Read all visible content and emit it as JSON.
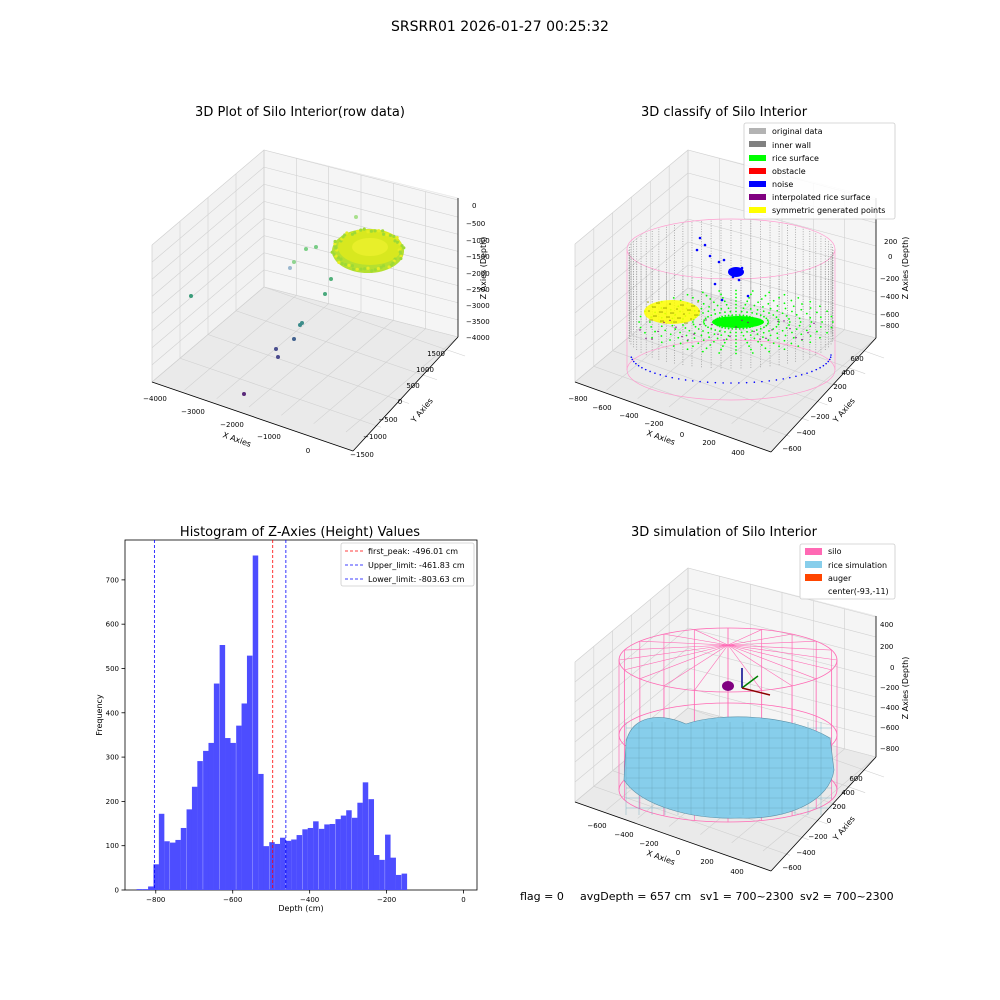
{
  "figure": {
    "suptitle": "SRSRR01 2026-01-27 00:25:32",
    "footer": {
      "flag": "flag = 0",
      "avg_depth": "avgDepth = 657 cm",
      "sv1": "sv1 = 700~2300",
      "sv2": "sv2 = 700~2300"
    }
  },
  "colors": {
    "original_data": "#b3b3b3",
    "inner_wall": "#808080",
    "rice_surface": "#00ff00",
    "obstacle": "#ff0000",
    "noise": "#0000ff",
    "interpolated_rice_surface": "#800080",
    "symmetric_generated_points": "#ffff00",
    "silo": "#ff69b4",
    "rice_simulation": "#87ceeb",
    "auger": "#ff4500",
    "hist_bar": "#4d4dff",
    "peak_line": "#ff0000",
    "limit_line": "#0000ff"
  },
  "chart_data": [
    {
      "type": "scatter3d",
      "title": "3D Plot of Silo Interior(row data)",
      "xlabel": "X Axies",
      "ylabel": "Y Axies",
      "zlabel": "Z Axies (Depth)",
      "xticks": [
        "−4000",
        "−3000",
        "−2000",
        "−1000",
        "0"
      ],
      "yticks": [
        "−1500",
        "−1000",
        "−500",
        "0",
        "500",
        "1000",
        "1500"
      ],
      "zticks": [
        "0",
        "−500",
        "−1000",
        "−1500",
        "−2000",
        "−2500",
        "−3000",
        "−3500",
        "−4000"
      ],
      "grid": true
    },
    {
      "type": "scatter3d",
      "title": "3D classify of Silo Interior",
      "xlabel": "X Axies",
      "ylabel": "Y Axies",
      "zlabel": "Z Axies (Depth)",
      "xticks": [
        "−800",
        "−600",
        "−400",
        "−200",
        "0",
        "200",
        "400"
      ],
      "yticks": [
        "−600",
        "−400",
        "−200",
        "0",
        "200",
        "400",
        "600"
      ],
      "zticks": [
        "200",
        "0",
        "−200",
        "−400",
        "−600",
        "−800"
      ],
      "legend": {
        "position": "upper-right",
        "entries": [
          {
            "label": "original data",
            "color": "#b3b3b3"
          },
          {
            "label": "inner wall",
            "color": "#808080"
          },
          {
            "label": "rice surface",
            "color": "#00ff00"
          },
          {
            "label": "obstacle",
            "color": "#ff0000"
          },
          {
            "label": "noise",
            "color": "#0000ff"
          },
          {
            "label": "interpolated rice surface",
            "color": "#800080"
          },
          {
            "label": "symmetric generated points",
            "color": "#ffff00"
          }
        ]
      },
      "grid": true
    },
    {
      "type": "bar",
      "title": "Histogram of Z-Axies (Height) Values",
      "xlabel": "Depth (cm)",
      "ylabel": "Frequency",
      "xlim": [
        -880,
        35
      ],
      "ylim": [
        0,
        790
      ],
      "xticks": [
        {
          "value": -800,
          "label": "−800"
        },
        {
          "value": -600,
          "label": "−600"
        },
        {
          "value": -400,
          "label": "−400"
        },
        {
          "value": -200,
          "label": "−200"
        },
        {
          "value": 0,
          "label": "0"
        }
      ],
      "yticks": [
        {
          "value": 0,
          "label": "0"
        },
        {
          "value": 100,
          "label": "100"
        },
        {
          "value": 200,
          "label": "200"
        },
        {
          "value": 300,
          "label": "300"
        },
        {
          "value": 400,
          "label": "400"
        },
        {
          "value": 500,
          "label": "500"
        },
        {
          "value": 600,
          "label": "600"
        },
        {
          "value": 700,
          "label": "700"
        }
      ],
      "bin_width": 14.3,
      "bins": [
        {
          "x": -850,
          "y": 2
        },
        {
          "x": -835,
          "y": 2
        },
        {
          "x": -820,
          "y": 8
        },
        {
          "x": -806,
          "y": 58
        },
        {
          "x": -792,
          "y": 172
        },
        {
          "x": -778,
          "y": 110
        },
        {
          "x": -763,
          "y": 107
        },
        {
          "x": -749,
          "y": 113
        },
        {
          "x": -735,
          "y": 140
        },
        {
          "x": -720,
          "y": 182
        },
        {
          "x": -706,
          "y": 233
        },
        {
          "x": -692,
          "y": 291
        },
        {
          "x": -677,
          "y": 314
        },
        {
          "x": -663,
          "y": 332
        },
        {
          "x": -649,
          "y": 466
        },
        {
          "x": -634,
          "y": 553
        },
        {
          "x": -620,
          "y": 343
        },
        {
          "x": -606,
          "y": 332
        },
        {
          "x": -591,
          "y": 371
        },
        {
          "x": -577,
          "y": 421
        },
        {
          "x": -563,
          "y": 529
        },
        {
          "x": -548,
          "y": 755
        },
        {
          "x": -534,
          "y": 262
        },
        {
          "x": -520,
          "y": 99
        },
        {
          "x": -505,
          "y": 108
        },
        {
          "x": -491,
          "y": 104
        },
        {
          "x": -477,
          "y": 118
        },
        {
          "x": -462,
          "y": 111
        },
        {
          "x": -448,
          "y": 114
        },
        {
          "x": -434,
          "y": 124
        },
        {
          "x": -419,
          "y": 137
        },
        {
          "x": -405,
          "y": 140
        },
        {
          "x": -391,
          "y": 155
        },
        {
          "x": -376,
          "y": 138
        },
        {
          "x": -362,
          "y": 148
        },
        {
          "x": -348,
          "y": 149
        },
        {
          "x": -333,
          "y": 160
        },
        {
          "x": -319,
          "y": 168
        },
        {
          "x": -305,
          "y": 180
        },
        {
          "x": -290,
          "y": 163
        },
        {
          "x": -276,
          "y": 197
        },
        {
          "x": -262,
          "y": 243
        },
        {
          "x": -247,
          "y": 205
        },
        {
          "x": -233,
          "y": 79
        },
        {
          "x": -219,
          "y": 68
        },
        {
          "x": -204,
          "y": 125
        },
        {
          "x": -190,
          "y": 73
        },
        {
          "x": -176,
          "y": 34
        },
        {
          "x": -161,
          "y": 37
        }
      ],
      "vlines": [
        {
          "label": "first_peak: -496.01 cm",
          "value": -496.01,
          "color": "#ff0000"
        },
        {
          "label": "Upper_limit: -461.83 cm",
          "value": -461.83,
          "color": "#0000ff"
        },
        {
          "label": "Lower_limit: -803.63 cm",
          "value": -803.63,
          "color": "#0000ff"
        }
      ],
      "legend": {
        "position": "upper-right"
      }
    },
    {
      "type": "surface3d",
      "title": "3D simulation of Silo Interior",
      "xlabel": "X Axies",
      "ylabel": "Y Axies",
      "zlabel": "Z Axies (Depth)",
      "xticks": [
        "−600",
        "−400",
        "−200",
        "0",
        "200",
        "400"
      ],
      "yticks": [
        "−600",
        "−400",
        "−200",
        "0",
        "200",
        "400",
        "600"
      ],
      "zticks": [
        "400",
        "200",
        "0",
        "−200",
        "−400",
        "−600",
        "−800"
      ],
      "legend": {
        "position": "upper-right",
        "entries": [
          {
            "label": "silo",
            "color": "#ff69b4"
          },
          {
            "label": "rice simulation",
            "color": "#87ceeb"
          },
          {
            "label": "auger",
            "color": "#ff4500"
          },
          {
            "label": "center(-93,-11)",
            "color": ""
          }
        ]
      },
      "grid": true
    }
  ]
}
